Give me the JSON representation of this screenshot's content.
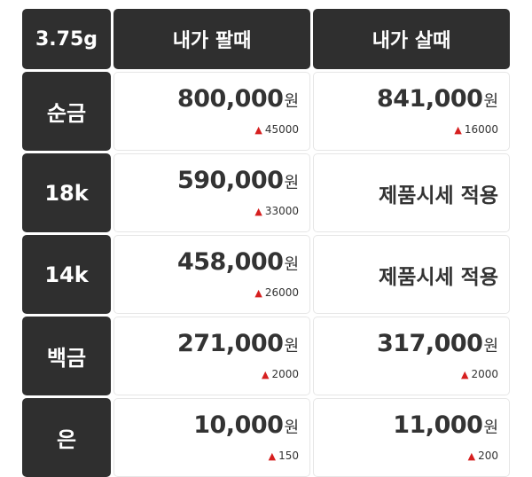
{
  "header": {
    "weight": "3.75g",
    "sell_label": "내가 팔때",
    "buy_label": "내가 살때"
  },
  "currency_unit": "원",
  "up_icon": "▲",
  "up_color": "#d61f1f",
  "rows": [
    {
      "name": "순금",
      "sell_price": "800,000",
      "sell_change": "45000",
      "buy_price": "841,000",
      "buy_change": "16000"
    },
    {
      "name": "18k",
      "sell_price": "590,000",
      "sell_change": "33000",
      "buy_text": "제품시세 적용"
    },
    {
      "name": "14k",
      "sell_price": "458,000",
      "sell_change": "26000",
      "buy_text": "제품시세 적용"
    },
    {
      "name": "백금",
      "sell_price": "271,000",
      "sell_change": "2000",
      "buy_price": "317,000",
      "buy_change": "2000"
    },
    {
      "name": "은",
      "sell_price": "10,000",
      "sell_change": "150",
      "buy_price": "11,000",
      "buy_change": "200"
    }
  ]
}
